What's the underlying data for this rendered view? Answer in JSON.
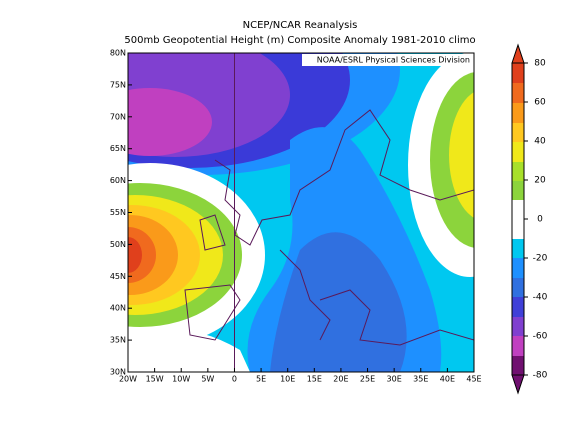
{
  "title": "NCEP/NCAR Reanalysis",
  "subtitle": "500mb Geopotential Height (m) Composite Anomaly 1981-2010 climo",
  "credit": "NOAA/ESRL Physical Sciences Division",
  "lat_ticks": [
    {
      "value": 80,
      "label": "80N"
    },
    {
      "value": 75,
      "label": "75N"
    },
    {
      "value": 70,
      "label": "70N"
    },
    {
      "value": 65,
      "label": "65N"
    },
    {
      "value": 60,
      "label": "60N"
    },
    {
      "value": 55,
      "label": "55N"
    },
    {
      "value": 50,
      "label": "50N"
    },
    {
      "value": 45,
      "label": "45N"
    },
    {
      "value": 40,
      "label": "40N"
    },
    {
      "value": 35,
      "label": "35N"
    },
    {
      "value": 30,
      "label": "30N"
    }
  ],
  "lon_ticks": [
    {
      "value": -20,
      "label": "20W"
    },
    {
      "value": -15,
      "label": "15W"
    },
    {
      "value": -10,
      "label": "10W"
    },
    {
      "value": -5,
      "label": "5W"
    },
    0,
    {
      "value": 5,
      "label": "5E"
    },
    {
      "value": 10,
      "label": "10E"
    },
    {
      "value": 15,
      "label": "15E"
    },
    {
      "value": 20,
      "label": "20E"
    },
    {
      "value": 25,
      "label": "25E"
    },
    {
      "value": 30,
      "label": "30E"
    },
    {
      "value": 35,
      "label": "35E"
    },
    {
      "value": 40,
      "label": "40E"
    },
    {
      "value": 45,
      "label": "45E"
    }
  ],
  "colorbar_ticks": [
    80,
    60,
    40,
    20,
    0,
    -20,
    -40,
    -60,
    -80
  ]
}
